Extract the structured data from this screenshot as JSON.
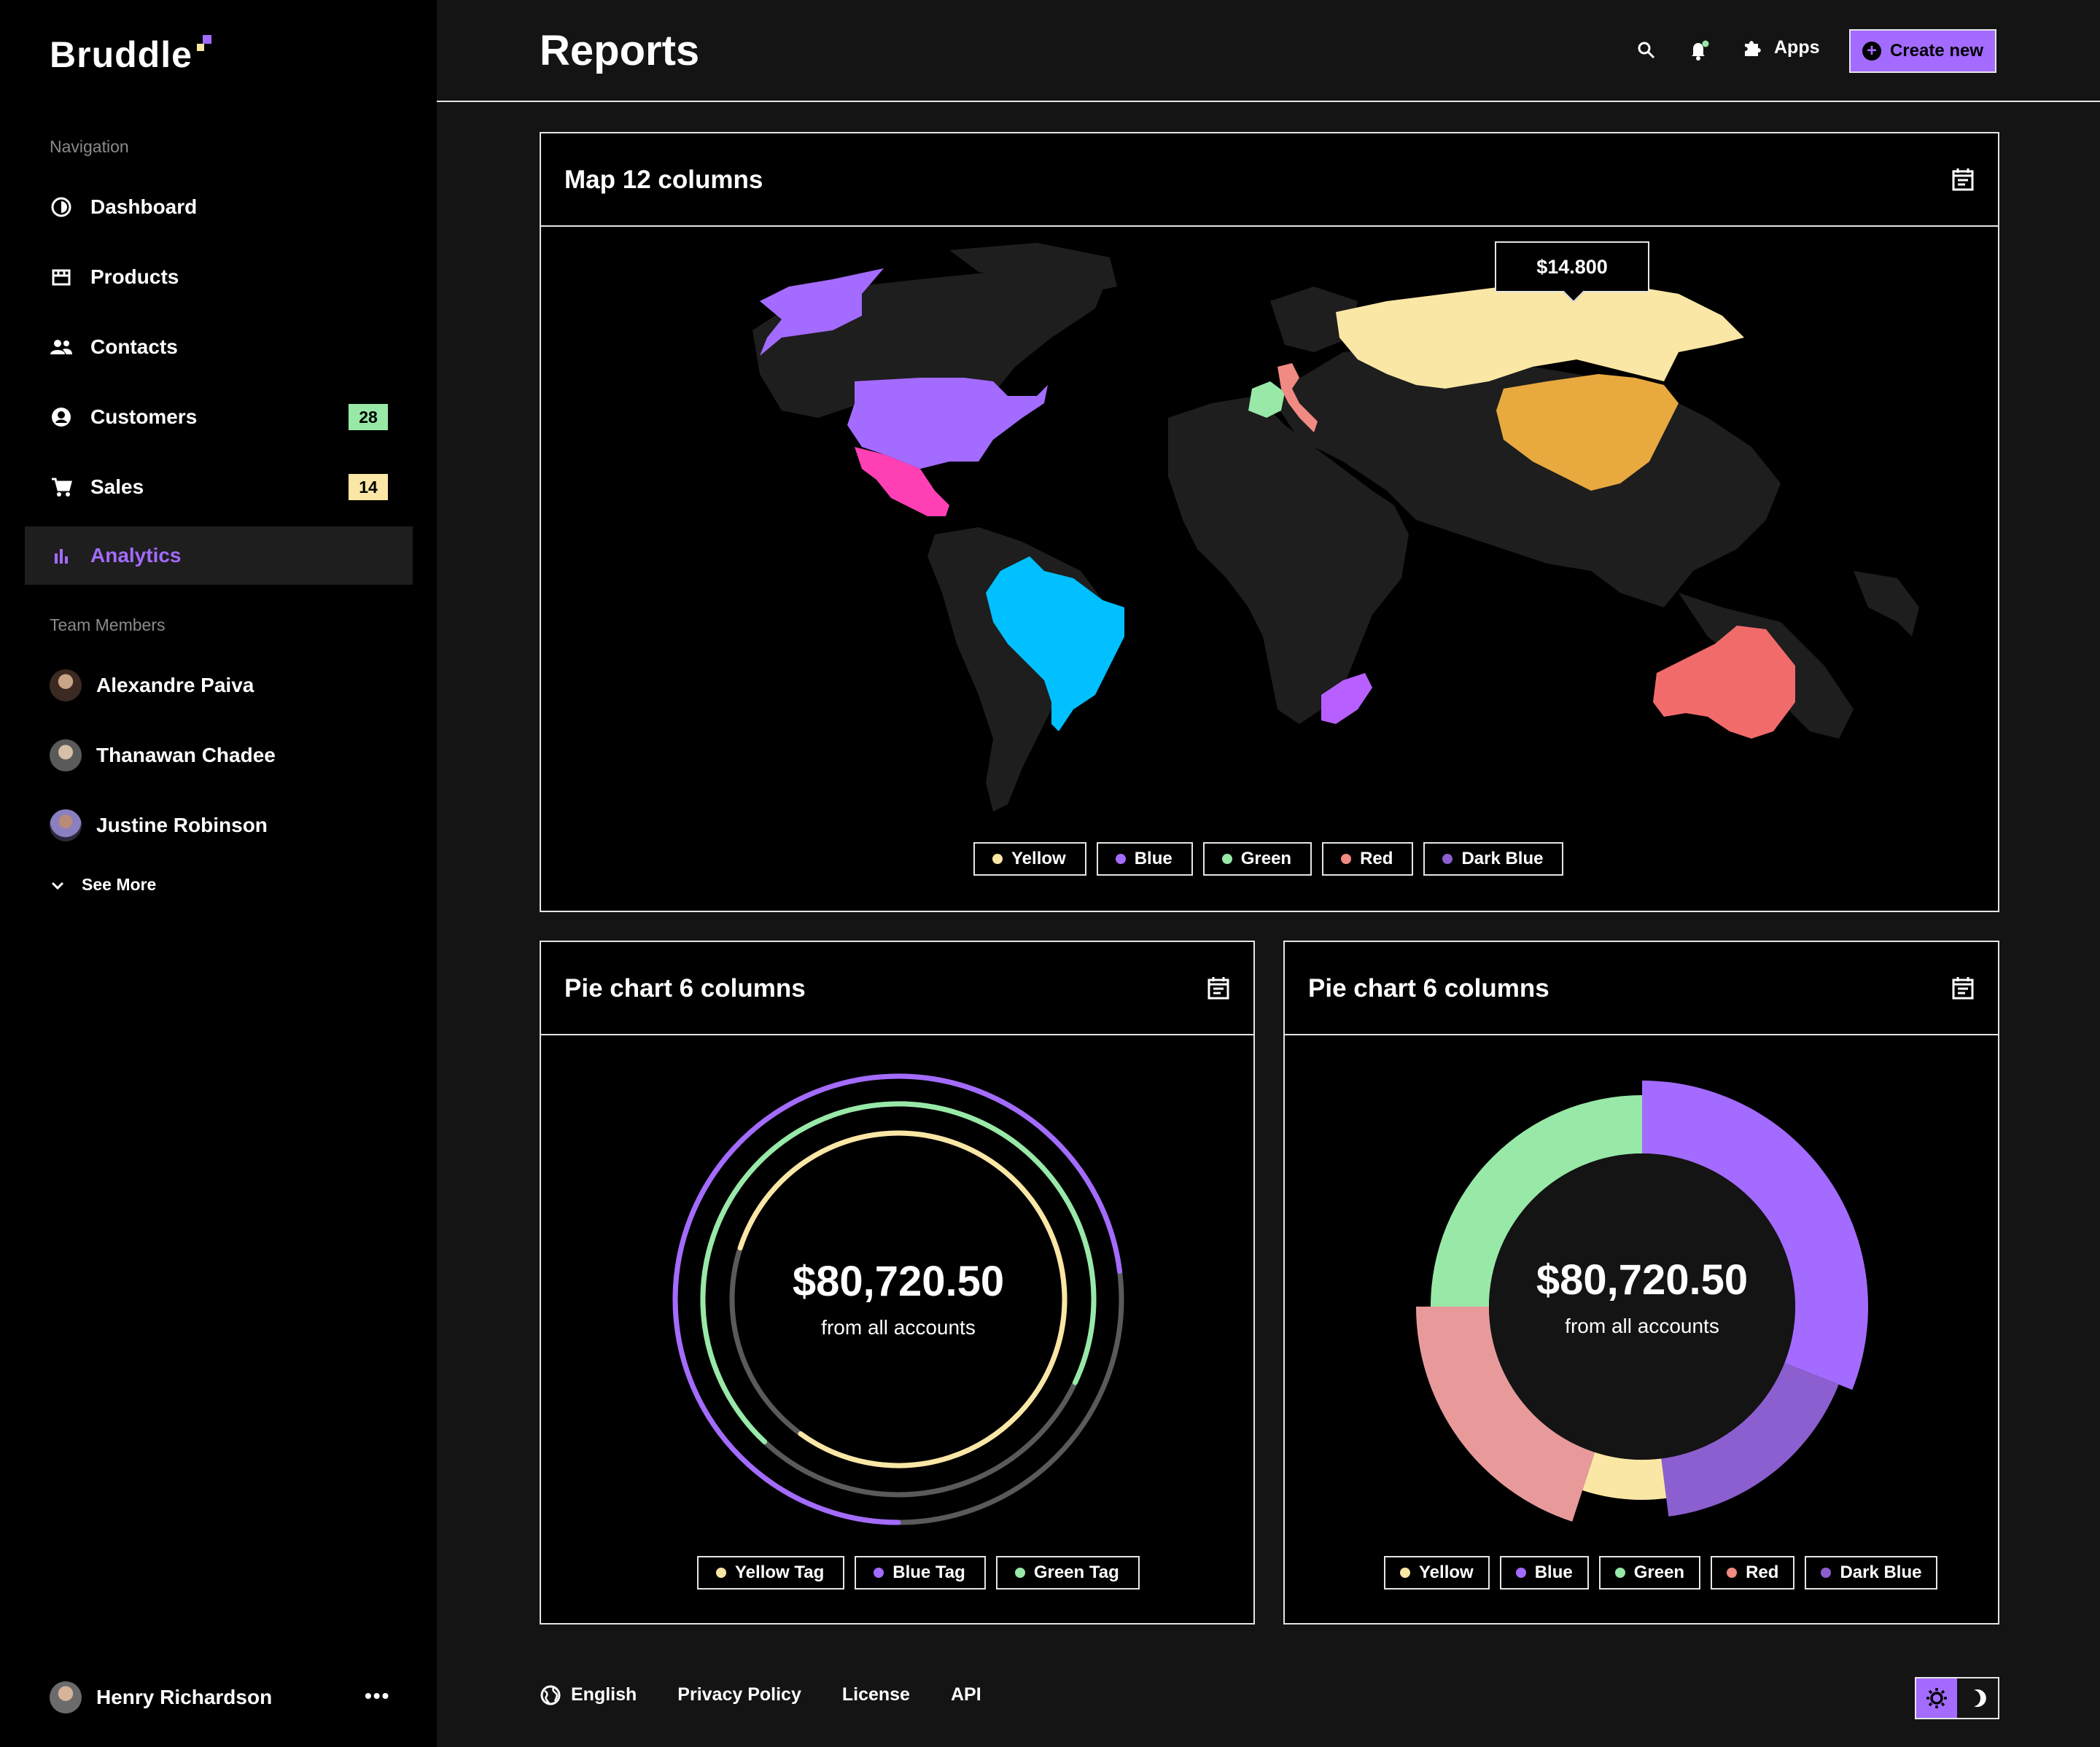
{
  "app": {
    "name": "Bruddle"
  },
  "sidebar": {
    "nav_label": "Navigation",
    "items": [
      {
        "label": "Dashboard",
        "icon": "dashboard-icon"
      },
      {
        "label": "Products",
        "icon": "store-icon"
      },
      {
        "label": "Contacts",
        "icon": "people-icon"
      },
      {
        "label": "Customers",
        "icon": "user-circle-icon",
        "badge": "28",
        "badge_color": "#98e9a8"
      },
      {
        "label": "Sales",
        "icon": "cart-icon",
        "badge": "14",
        "badge_color": "#fbe7a5"
      },
      {
        "label": "Analytics",
        "icon": "bar-chart-icon",
        "active": true
      }
    ],
    "team_label": "Team Members",
    "members": [
      {
        "name": "Alexandre Paiva"
      },
      {
        "name": "Thanawan Chadee"
      },
      {
        "name": "Justine Robinson"
      }
    ],
    "see_more": "See More",
    "user": {
      "name": "Henry Richardson"
    }
  },
  "header": {
    "title": "Reports",
    "apps_label": "Apps",
    "create_label": "Create new"
  },
  "map_card": {
    "title": "Map 12 columns",
    "tooltip": "$14.800",
    "legend": [
      {
        "label": "Yellow",
        "color": "#fbe7a5"
      },
      {
        "label": "Blue",
        "color": "#a36bff"
      },
      {
        "label": "Green",
        "color": "#98e9a8"
      },
      {
        "label": "Red",
        "color": "#f08a82"
      },
      {
        "label": "Dark Blue",
        "color": "#8c5fd0"
      }
    ]
  },
  "pie1": {
    "title": "Pie chart 6 columns",
    "value": "$80,720.50",
    "subtitle": "from all accounts",
    "legend": [
      {
        "label": "Yellow Tag",
        "color": "#fbe7a5"
      },
      {
        "label": "Blue Tag",
        "color": "#a36bff"
      },
      {
        "label": "Green Tag",
        "color": "#98e9a8"
      }
    ]
  },
  "pie2": {
    "title": "Pie chart 6 columns",
    "value": "$80,720.50",
    "subtitle": "from all accounts",
    "legend": [
      {
        "label": "Yellow",
        "color": "#fbe7a5"
      },
      {
        "label": "Blue",
        "color": "#a36bff"
      },
      {
        "label": "Green",
        "color": "#98e9a8"
      },
      {
        "label": "Red",
        "color": "#f08a82"
      },
      {
        "label": "Dark Blue",
        "color": "#8c5fd0"
      }
    ]
  },
  "chart_data": [
    {
      "type": "pie",
      "style": "concentric-rings",
      "series": [
        {
          "name": "Yellow Tag",
          "percent": 80,
          "color": "#fbe7a5"
        },
        {
          "name": "Green Tag",
          "percent": 70,
          "color": "#98e9a8"
        },
        {
          "name": "Blue Tag",
          "percent": 73,
          "color": "#a36bff"
        }
      ]
    },
    {
      "type": "pie",
      "style": "donut",
      "slices": [
        {
          "name": "Blue",
          "percent": 31,
          "color": "#a36bff"
        },
        {
          "name": "Dark Blue",
          "percent": 17,
          "color": "#8c5fd0"
        },
        {
          "name": "Yellow",
          "percent": 7,
          "color": "#fbe7a5"
        },
        {
          "name": "Red",
          "percent": 20,
          "color": "#e89a9a"
        },
        {
          "name": "Green",
          "percent": 25,
          "color": "#98e9a8"
        }
      ]
    }
  ],
  "footer": {
    "language": "English",
    "links": [
      "Privacy Policy",
      "License",
      "API"
    ]
  }
}
